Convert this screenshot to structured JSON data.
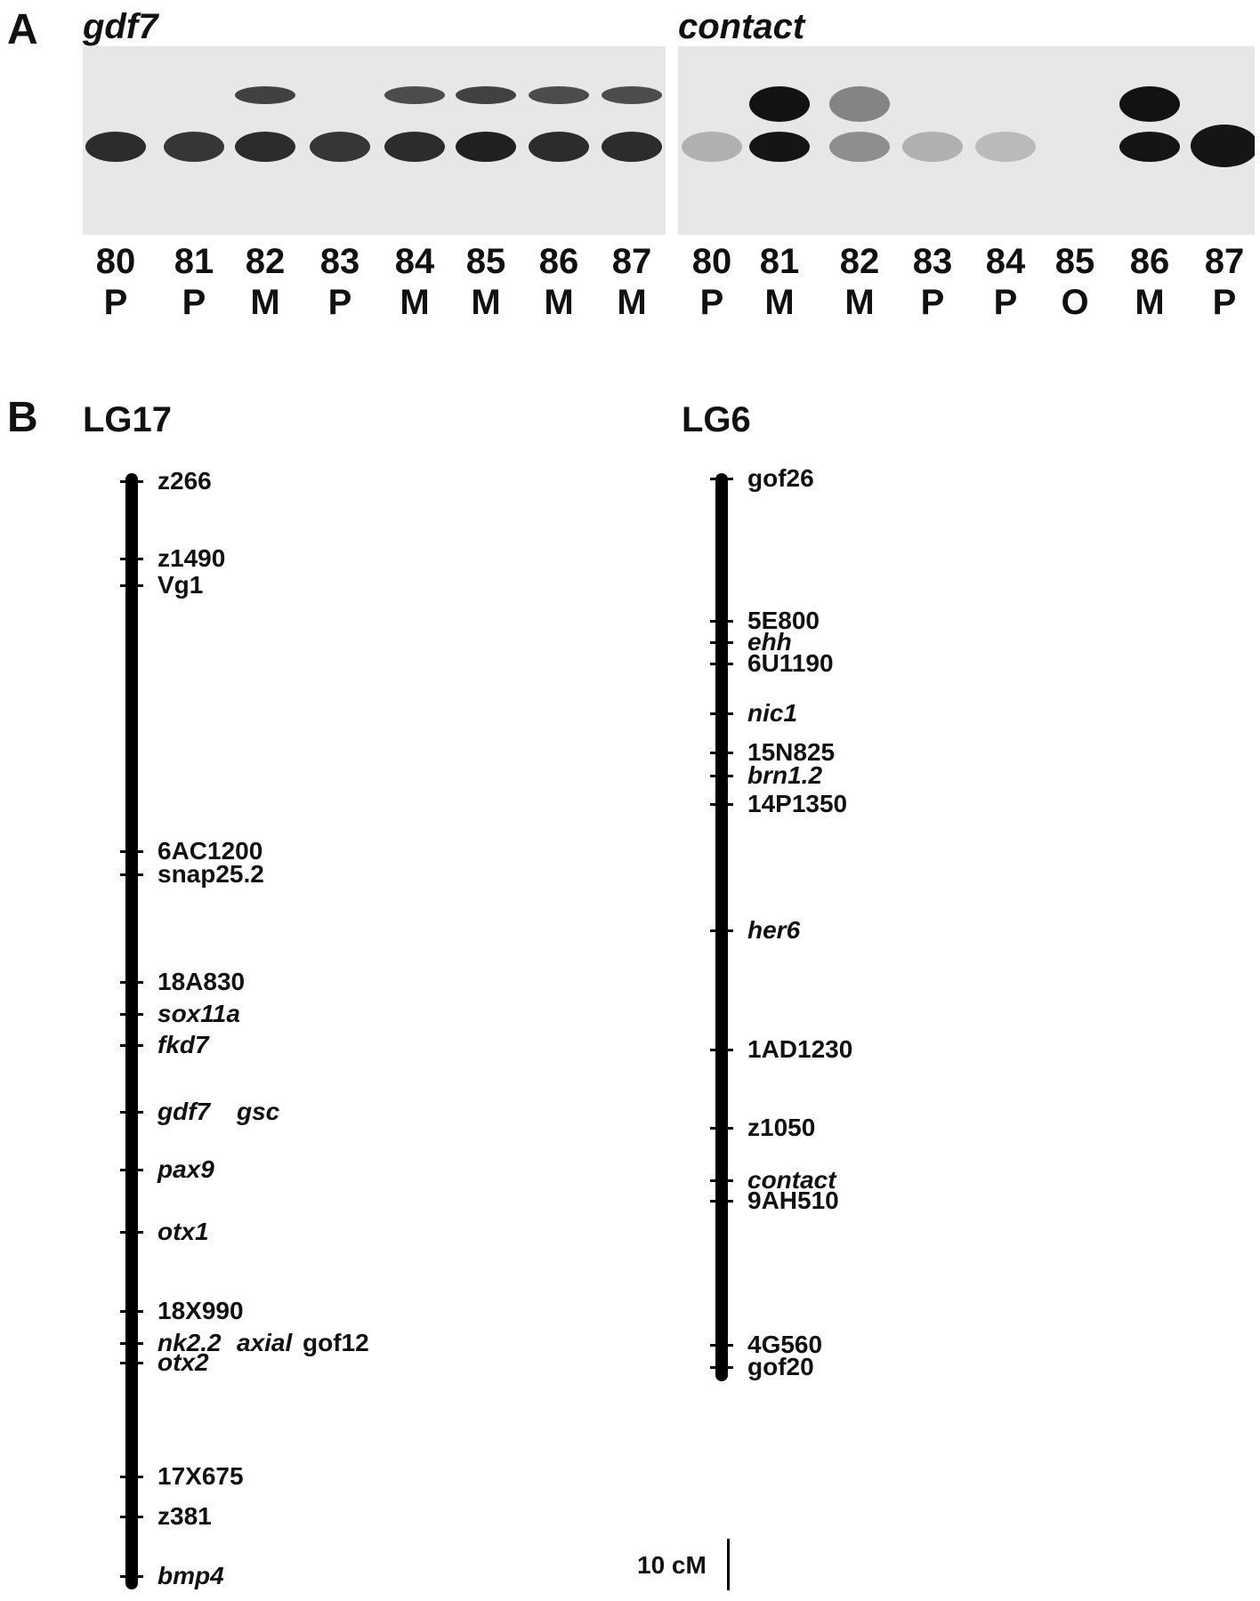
{
  "panel_a": {
    "letter": "A",
    "gels": [
      {
        "title": "gdf7",
        "lanes": [
          {
            "number": "80",
            "type": "P"
          },
          {
            "number": "81",
            "type": "P"
          },
          {
            "number": "82",
            "type": "M"
          },
          {
            "number": "83",
            "type": "P"
          },
          {
            "number": "84",
            "type": "M"
          },
          {
            "number": "85",
            "type": "M"
          },
          {
            "number": "86",
            "type": "M"
          },
          {
            "number": "87",
            "type": "M"
          }
        ]
      },
      {
        "title": "contact",
        "lanes": [
          {
            "number": "80",
            "type": "P"
          },
          {
            "number": "81",
            "type": "M"
          },
          {
            "number": "82",
            "type": "M"
          },
          {
            "number": "83",
            "type": "P"
          },
          {
            "number": "84",
            "type": "P"
          },
          {
            "number": "85",
            "type": "O"
          },
          {
            "number": "86",
            "type": "M"
          },
          {
            "number": "87",
            "type": "P"
          }
        ]
      }
    ]
  },
  "panel_b": {
    "letter": "B",
    "linkage_groups": [
      {
        "title": "LG17",
        "markers": [
          {
            "label": "z266",
            "italic": false,
            "tick": true
          },
          {
            "label": "z1490",
            "italic": false,
            "tick": true
          },
          {
            "label": "Vg1",
            "italic": false,
            "tick": true
          },
          {
            "label": "6AC1200",
            "italic": false,
            "tick": true
          },
          {
            "label": "snap25.2",
            "italic": false,
            "tick": true
          },
          {
            "label": "18A830",
            "italic": false,
            "tick": true
          },
          {
            "label": "sox11a",
            "italic": true,
            "tick": true
          },
          {
            "label": "fkd7",
            "italic": true,
            "tick": true
          },
          {
            "label": "gdf7",
            "italic": true,
            "tick": true
          },
          {
            "label": "gsc",
            "italic": true,
            "tick": false
          },
          {
            "label": "pax9",
            "italic": true,
            "tick": true
          },
          {
            "label": "otx1",
            "italic": true,
            "tick": true
          },
          {
            "label": "18X990",
            "italic": false,
            "tick": true
          },
          {
            "label": "nk2.2",
            "italic": true,
            "tick": true
          },
          {
            "label": "axial",
            "italic": true,
            "tick": false
          },
          {
            "label": "gof12",
            "italic": false,
            "tick": false
          },
          {
            "label": "otx2",
            "italic": true,
            "tick": true
          },
          {
            "label": "17X675",
            "italic": false,
            "tick": true
          },
          {
            "label": "z381",
            "italic": false,
            "tick": true
          },
          {
            "label": "bmp4",
            "italic": true,
            "tick": true
          }
        ]
      },
      {
        "title": "LG6",
        "markers": [
          {
            "label": "gof26",
            "italic": false,
            "tick": true
          },
          {
            "label": "5E800",
            "italic": false,
            "tick": true
          },
          {
            "label": "ehh",
            "italic": true,
            "tick": true
          },
          {
            "label": "6U1190",
            "italic": false,
            "tick": true
          },
          {
            "label": "nic1",
            "italic": true,
            "tick": true
          },
          {
            "label": "15N825",
            "italic": false,
            "tick": true
          },
          {
            "label": "brn1.2",
            "italic": true,
            "tick": true
          },
          {
            "label": "14P1350",
            "italic": false,
            "tick": true
          },
          {
            "label": "her6",
            "italic": true,
            "tick": true
          },
          {
            "label": "1AD1230",
            "italic": false,
            "tick": true
          },
          {
            "label": "z1050",
            "italic": false,
            "tick": true
          },
          {
            "label": "contact",
            "italic": true,
            "tick": true
          },
          {
            "label": "9AH510",
            "italic": false,
            "tick": true
          },
          {
            "label": "4G560",
            "italic": false,
            "tick": true
          },
          {
            "label": "gof20",
            "italic": false,
            "tick": true
          }
        ]
      }
    ],
    "scale_label": "10 cM"
  }
}
